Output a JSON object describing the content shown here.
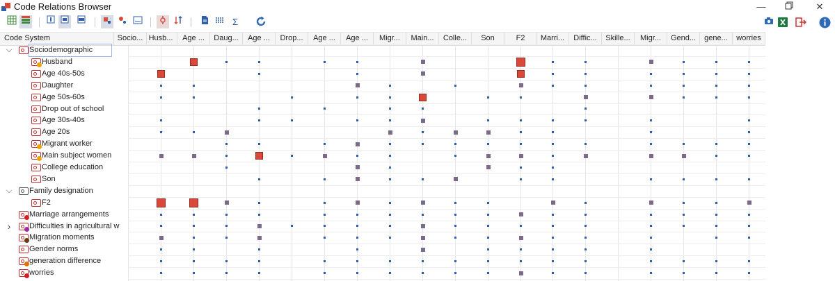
{
  "window": {
    "title": "Code Relations Browser",
    "controls": [
      "minimize-icon",
      "restore-icon",
      "close-icon"
    ]
  },
  "toolbar": {
    "left_icons": [
      "table-icon",
      "list-icon",
      "column-view-icon",
      "row-view-icon",
      "fit-view-icon",
      "square-symbol-icon",
      "circle-symbol-icon",
      "number-symbol-icon",
      "filter-icon",
      "sort-icon",
      "document-icon",
      "binary-icon",
      "sigma-icon",
      "refresh-icon"
    ],
    "right_icons": [
      "camera-icon",
      "excel-icon",
      "export-icon",
      "info-icon"
    ],
    "sigma": "Σ"
  },
  "header": {
    "first": "Code System",
    "columns": [
      "Socio...",
      "Husb...",
      "Age ...",
      "Daug...",
      "Age ...",
      "Drop...",
      "Age ...",
      "Age ...",
      "Migr...",
      "Main...",
      "Colle...",
      "Son",
      "F2",
      "Marri...",
      "Diffic...",
      "Skille...",
      "Migr...",
      "Gend...",
      "gene...",
      "worries"
    ]
  },
  "rows": [
    {
      "label": "Sociodemographic",
      "level": 0,
      "caret": "down",
      "icon": "red",
      "dot": ""
    },
    {
      "label": "Husband",
      "level": 1,
      "caret": "",
      "icon": "red",
      "dot": "#e8a400"
    },
    {
      "label": "Age 40s-50s",
      "level": 1,
      "caret": "",
      "icon": "red",
      "dot": ""
    },
    {
      "label": "Daughter",
      "level": 1,
      "caret": "",
      "icon": "red",
      "dot": ""
    },
    {
      "label": "Age 50s-60s",
      "level": 1,
      "caret": "",
      "icon": "red",
      "dot": ""
    },
    {
      "label": "Drop out of school",
      "level": 1,
      "caret": "",
      "icon": "red",
      "dot": ""
    },
    {
      "label": "Age 30s-40s",
      "level": 1,
      "caret": "",
      "icon": "red",
      "dot": ""
    },
    {
      "label": "Age 20s",
      "level": 1,
      "caret": "",
      "icon": "red",
      "dot": ""
    },
    {
      "label": "Migrant worker",
      "level": 1,
      "caret": "",
      "icon": "red",
      "dot": "#e8a400"
    },
    {
      "label": "Main subject women",
      "level": 1,
      "caret": "",
      "icon": "red",
      "dot": "#e8a400"
    },
    {
      "label": "College education",
      "level": 1,
      "caret": "",
      "icon": "red",
      "dot": ""
    },
    {
      "label": "Son",
      "level": 1,
      "caret": "",
      "icon": "red",
      "dot": ""
    },
    {
      "label": "Family designation",
      "level": 0,
      "caret": "down",
      "icon": "grey",
      "dot": ""
    },
    {
      "label": "F2",
      "level": 1,
      "caret": "",
      "icon": "red",
      "dot": ""
    },
    {
      "label": "Marriage arrangements",
      "level": 0,
      "caret": "",
      "icon": "red",
      "dot": "#d02020"
    },
    {
      "label": "Difficulties in agricultural w",
      "level": 0,
      "caret": "right",
      "icon": "red",
      "dot": "#9a2aa0"
    },
    {
      "label": "Migration moments",
      "level": 0,
      "caret": "",
      "icon": "red",
      "dot": "#6a3a10"
    },
    {
      "label": "Gender norms",
      "level": 0,
      "caret": "",
      "icon": "red",
      "dot": ""
    },
    {
      "label": "generation difference",
      "level": 0,
      "caret": "",
      "icon": "red",
      "dot": "#e07000"
    },
    {
      "label": "worries",
      "level": 0,
      "caret": "",
      "icon": "red",
      "dot": "#d02020"
    }
  ],
  "matrix": [
    [
      0,
      0,
      0,
      0,
      0,
      0,
      0,
      0,
      0,
      0,
      0,
      0,
      0,
      0,
      0,
      0,
      0,
      0,
      0,
      0
    ],
    [
      0,
      0,
      3,
      1,
      1,
      0,
      1,
      1,
      0,
      2,
      0,
      0,
      4,
      1,
      1,
      0,
      2,
      1,
      1,
      1
    ],
    [
      0,
      3,
      0,
      0,
      1,
      0,
      0,
      1,
      0,
      2,
      0,
      0,
      3,
      1,
      1,
      0,
      1,
      1,
      1,
      1
    ],
    [
      0,
      1,
      1,
      0,
      0,
      0,
      0,
      2,
      1,
      0,
      1,
      0,
      2,
      1,
      1,
      0,
      1,
      1,
      1,
      1
    ],
    [
      0,
      1,
      1,
      0,
      0,
      1,
      0,
      1,
      1,
      3,
      0,
      1,
      1,
      0,
      2,
      0,
      2,
      1,
      1,
      1
    ],
    [
      0,
      0,
      0,
      0,
      1,
      0,
      1,
      0,
      1,
      1,
      0,
      0,
      0,
      0,
      1,
      0,
      0,
      0,
      0,
      0
    ],
    [
      0,
      1,
      0,
      0,
      1,
      1,
      0,
      1,
      1,
      2,
      0,
      1,
      1,
      1,
      1,
      0,
      1,
      0,
      0,
      1
    ],
    [
      0,
      1,
      1,
      2,
      0,
      0,
      0,
      0,
      2,
      1,
      2,
      2,
      1,
      1,
      0,
      0,
      1,
      0,
      0,
      1
    ],
    [
      0,
      0,
      0,
      1,
      1,
      0,
      1,
      2,
      1,
      1,
      1,
      1,
      1,
      1,
      1,
      0,
      1,
      1,
      1,
      1
    ],
    [
      0,
      2,
      2,
      1,
      3,
      1,
      2,
      1,
      1,
      0,
      1,
      2,
      2,
      1,
      2,
      0,
      2,
      2,
      1,
      1
    ],
    [
      0,
      0,
      0,
      1,
      0,
      0,
      0,
      2,
      1,
      0,
      0,
      2,
      1,
      1,
      0,
      0,
      0,
      0,
      0,
      0
    ],
    [
      0,
      0,
      0,
      0,
      1,
      0,
      1,
      2,
      1,
      1,
      2,
      0,
      1,
      1,
      0,
      0,
      1,
      1,
      1,
      1
    ],
    [
      0,
      0,
      0,
      0,
      0,
      0,
      0,
      0,
      0,
      0,
      0,
      0,
      0,
      0,
      0,
      0,
      0,
      0,
      0,
      0
    ],
    [
      0,
      4,
      4,
      2,
      1,
      0,
      1,
      2,
      1,
      2,
      1,
      1,
      0,
      2,
      1,
      0,
      2,
      1,
      1,
      2
    ],
    [
      0,
      1,
      1,
      1,
      1,
      0,
      1,
      1,
      1,
      1,
      1,
      1,
      2,
      1,
      1,
      0,
      1,
      1,
      1,
      1
    ],
    [
      0,
      1,
      1,
      1,
      2,
      1,
      1,
      1,
      1,
      2,
      1,
      1,
      1,
      1,
      1,
      0,
      1,
      1,
      1,
      1
    ],
    [
      0,
      2,
      1,
      1,
      2,
      0,
      1,
      1,
      1,
      2,
      1,
      1,
      2,
      1,
      1,
      0,
      1,
      0,
      1,
      1
    ],
    [
      0,
      1,
      1,
      0,
      1,
      0,
      0,
      1,
      0,
      2,
      0,
      1,
      1,
      1,
      1,
      0,
      1,
      0,
      0,
      0
    ],
    [
      0,
      1,
      1,
      1,
      1,
      0,
      1,
      1,
      1,
      1,
      1,
      1,
      1,
      1,
      1,
      0,
      1,
      1,
      1,
      1
    ],
    [
      0,
      1,
      1,
      1,
      1,
      0,
      1,
      1,
      1,
      1,
      1,
      1,
      2,
      1,
      1,
      0,
      1,
      1,
      1,
      1
    ]
  ],
  "colors": {
    "strong": "#d9493a",
    "medium": "#7b6a88",
    "weak": "#2f5ea8"
  }
}
